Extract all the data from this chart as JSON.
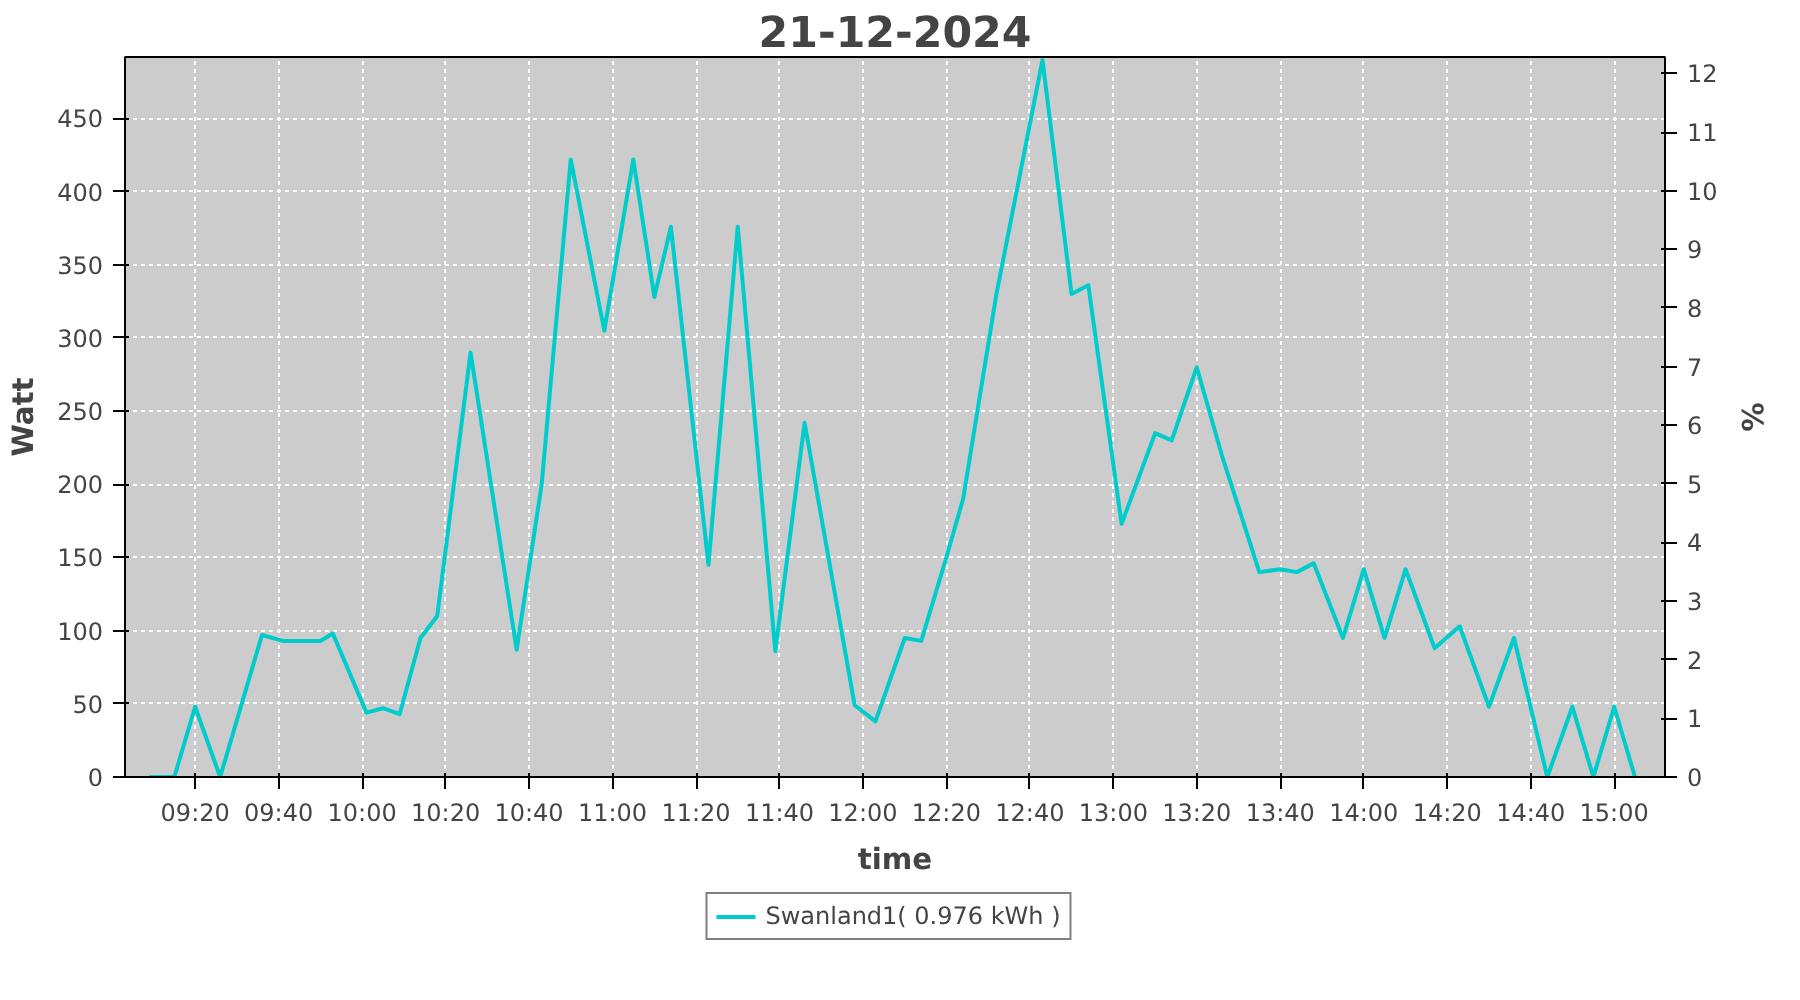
{
  "chart_data": {
    "type": "line",
    "title": "21-12-2024",
    "xlabel": "time",
    "ylabel": "Watt",
    "y2label": "%",
    "xlim": [
      9.053,
      15.203
    ],
    "ylim": [
      0,
      492
    ],
    "y2lim": [
      0,
      12.28
    ],
    "xticks": [
      {
        "value": 9.3333,
        "label": "09:20"
      },
      {
        "value": 9.6667,
        "label": "09:40"
      },
      {
        "value": 10,
        "label": "10:00"
      },
      {
        "value": 10.3333,
        "label": "10:20"
      },
      {
        "value": 10.6667,
        "label": "10:40"
      },
      {
        "value": 11,
        "label": "11:00"
      },
      {
        "value": 11.3333,
        "label": "11:20"
      },
      {
        "value": 11.6667,
        "label": "11:40"
      },
      {
        "value": 12,
        "label": "12:00"
      },
      {
        "value": 12.3333,
        "label": "12:20"
      },
      {
        "value": 12.6667,
        "label": "12:40"
      },
      {
        "value": 13,
        "label": "13:00"
      },
      {
        "value": 13.3333,
        "label": "13:20"
      },
      {
        "value": 13.6667,
        "label": "13:40"
      },
      {
        "value": 14,
        "label": "14:00"
      },
      {
        "value": 14.3333,
        "label": "14:20"
      },
      {
        "value": 14.6667,
        "label": "14:40"
      },
      {
        "value": 15,
        "label": "15:00"
      }
    ],
    "yticks": [
      0,
      50,
      100,
      150,
      200,
      250,
      300,
      350,
      400,
      450
    ],
    "y2ticks": [
      0,
      1,
      2,
      3,
      4,
      5,
      6,
      7,
      8,
      9,
      10,
      11,
      12
    ],
    "grid": true,
    "legend": "bottom",
    "marker": "none",
    "line_style": "solid",
    "x": [
      9.15,
      9.25,
      9.333,
      9.433,
      9.6,
      9.683,
      9.833,
      9.883,
      10.017,
      10.083,
      10.15,
      10.233,
      10.3,
      10.433,
      10.617,
      10.717,
      10.833,
      10.967,
      11.083,
      11.167,
      11.233,
      11.383,
      11.5,
      11.65,
      11.767,
      11.967,
      12.05,
      12.167,
      12.233,
      12.333,
      12.4,
      12.533,
      12.717,
      12.833,
      12.9,
      13.033,
      13.167,
      13.233,
      13.333,
      13.433,
      13.583,
      13.667,
      13.733,
      13.8,
      13.917,
      14,
      14.083,
      14.167,
      14.283,
      14.383,
      14.5,
      14.6,
      14.733,
      14.833,
      14.917,
      15,
      15.083
    ],
    "series": [
      {
        "name": "Swanland1( 0.976 kWh )",
        "color": "#00cccc",
        "values": [
          0,
          0,
          48,
          0,
          97,
          93,
          93,
          98,
          44,
          47,
          43,
          95,
          110,
          290,
          87,
          200,
          422,
          305,
          422,
          328,
          376,
          145,
          376,
          86,
          242,
          49,
          38,
          95,
          93,
          150,
          190,
          330,
          490,
          330,
          336,
          173,
          235,
          230,
          280,
          220,
          140,
          142,
          140,
          146,
          95,
          142,
          95,
          142,
          88,
          103,
          48,
          95,
          0,
          48,
          0,
          48,
          0
        ]
      }
    ]
  }
}
